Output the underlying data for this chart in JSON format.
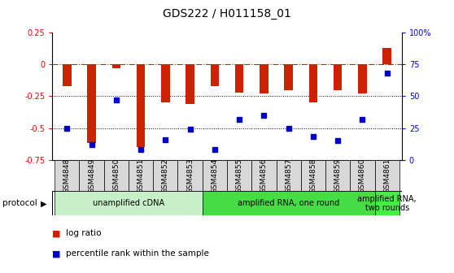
{
  "title": "GDS222 / H011158_01",
  "samples": [
    "GSM4848",
    "GSM4849",
    "GSM4850",
    "GSM4851",
    "GSM4852",
    "GSM4853",
    "GSM4854",
    "GSM4855",
    "GSM4856",
    "GSM4857",
    "GSM4858",
    "GSM4859",
    "GSM4860",
    "GSM4861"
  ],
  "log_ratio": [
    -0.17,
    -0.62,
    -0.03,
    -0.65,
    -0.3,
    -0.31,
    -0.17,
    -0.22,
    -0.23,
    -0.2,
    -0.3,
    -0.2,
    -0.23,
    0.13
  ],
  "percentile": [
    25,
    12,
    47,
    8,
    16,
    24,
    8,
    32,
    35,
    25,
    18,
    15,
    32,
    68
  ],
  "ylim_left": [
    -0.75,
    0.25
  ],
  "ylim_right": [
    0,
    100
  ],
  "bar_color": "#cc2200",
  "dot_color": "#0000cc",
  "zero_line_color": "#cc2200",
  "grid_color": "#000000",
  "proto_spans": [
    [
      0,
      5,
      "#c8f0c8",
      "unamplified cDNA"
    ],
    [
      6,
      12,
      "#44dd44",
      "amplified RNA, one round"
    ],
    [
      13,
      13,
      "#44ee44",
      "amplified RNA,\ntwo rounds"
    ]
  ],
  "protocol_label": "protocol",
  "legend_items": [
    {
      "label": "log ratio",
      "color": "#cc2200"
    },
    {
      "label": "percentile rank within the sample",
      "color": "#0000cc"
    }
  ],
  "left_yticks": [
    0.25,
    0,
    -0.25,
    -0.5,
    -0.75
  ],
  "left_yticklabels": [
    "0.25",
    "0",
    "-0.25",
    "-0.5",
    "-0.75"
  ],
  "right_yticks": [
    0,
    25,
    50,
    75,
    100
  ],
  "right_yticklabels": [
    "0",
    "25",
    "50",
    "75",
    "100%"
  ]
}
